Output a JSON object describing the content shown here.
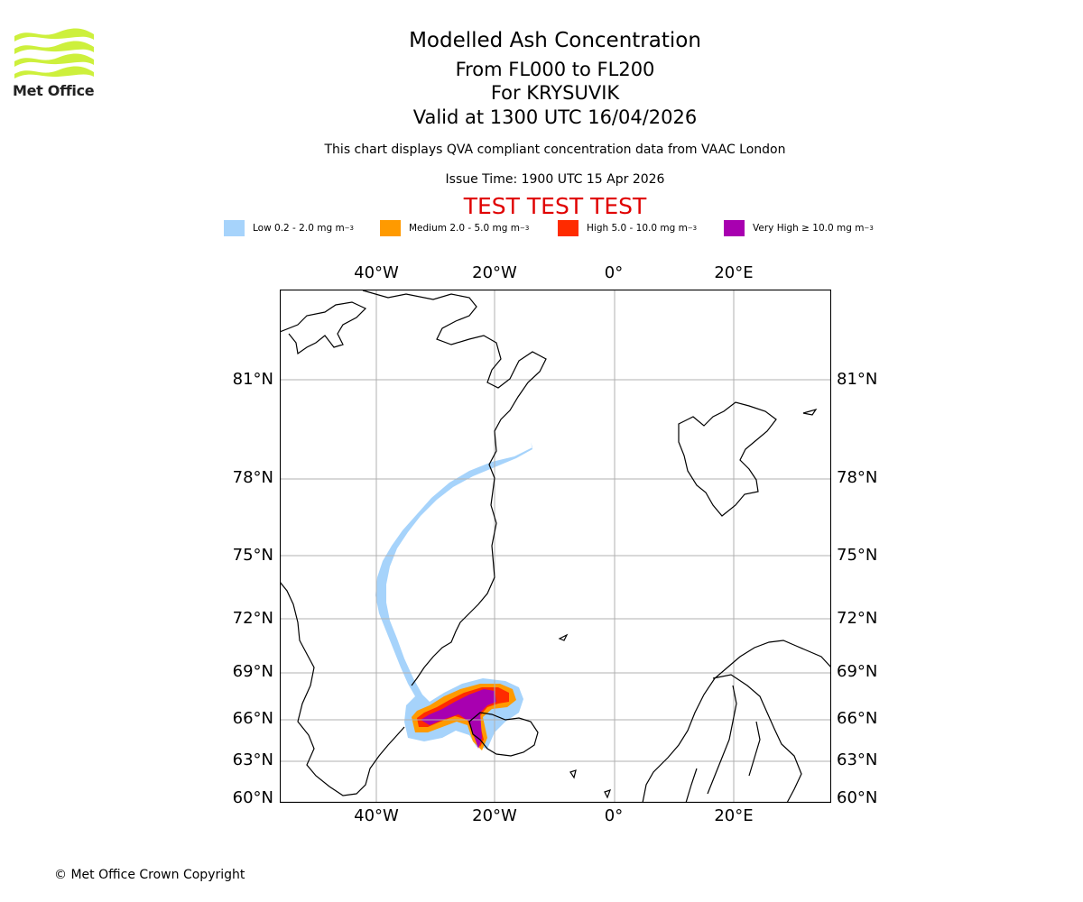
{
  "logo": {
    "text": "Met Office",
    "color": "#cdf03c"
  },
  "header": {
    "title": "Modelled Ash Concentration",
    "levels": "From FL000 to FL200",
    "volcano": "For KRYSUVIK",
    "valid": "Valid at 1300 UTC 16/04/2026",
    "description": "This chart displays QVA compliant concentration data from VAAC London",
    "issue": "Issue Time: 1900 UTC 15 Apr 2026",
    "test": "TEST TEST TEST"
  },
  "legend": [
    {
      "label": "Low 0.2 - 2.0 mg m",
      "exp": "−3",
      "color": "#a6d3fb"
    },
    {
      "label": "Medium 2.0 - 5.0 mg m",
      "exp": "−3",
      "color": "#ff9a00"
    },
    {
      "label": "High 5.0 - 10.0 mg m",
      "exp": "−3",
      "color": "#ff2b00"
    },
    {
      "label": "Very High  ≥  10.0 mg m",
      "exp": "−3",
      "color": "#a800b0"
    }
  ],
  "map": {
    "lon_labels": [
      "40°W",
      "20°W",
      "0°",
      "20°E"
    ],
    "lat_labels": [
      "81°N",
      "78°N",
      "75°N",
      "72°N",
      "69°N",
      "66°N",
      "63°N",
      "60°N"
    ]
  },
  "footer": {
    "copyright": "© Met Office Crown Copyright"
  }
}
